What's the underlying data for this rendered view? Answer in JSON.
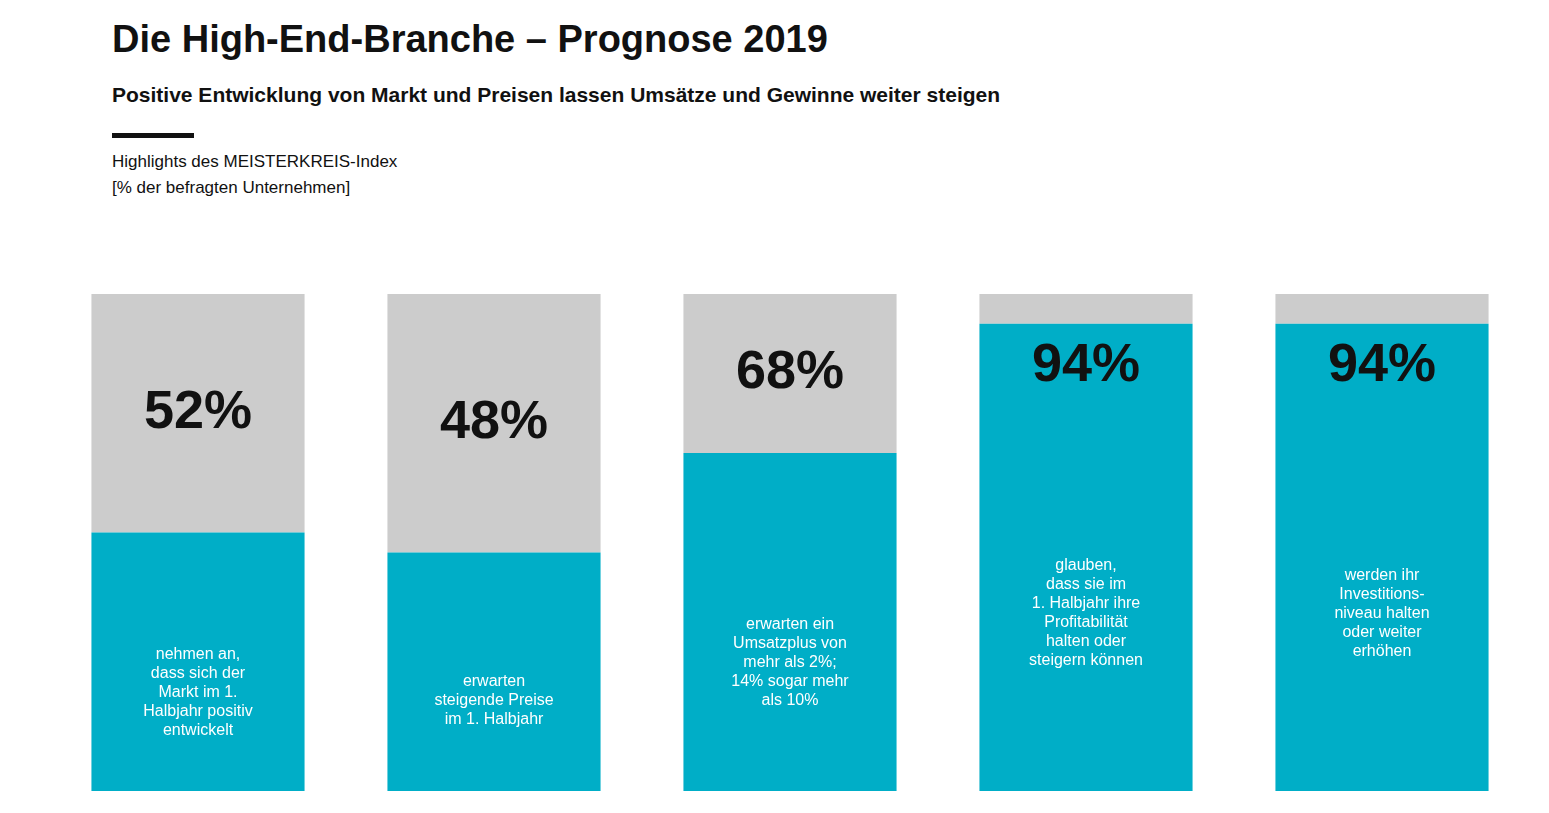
{
  "chart_data": {
    "type": "bar",
    "title": "Die High-End-Branche – Prognose 2019",
    "subtitle": "Positive Entwicklung von Markt und Preisen lassen Umsätze und Gewinne weiter steigen",
    "annotations": [
      "Highlights des MEISTERKREIS-Index",
      "[% der befragten Unternehmen]"
    ],
    "categories": [
      "nehmen an,\ndass sich der\nMarkt im 1.\nHalbjahr positiv\nentwickelt",
      "erwarten\nsteigende Preise\nim 1. Halbjahr",
      "erwarten ein\nUmsatzplus von\nmehr als 2%;\n14% sogar mehr\nals 10%",
      "glauben,\ndass sie im\n1. Halbjahr ihre\nProfitabilität\nhalten oder\nsteigern können",
      "werden ihr\nInvestitions-\nniveau halten\noder weiter\nerhöhen"
    ],
    "series": [
      {
        "color": "#00aec7",
        "values": [
          52,
          48,
          68,
          94,
          94
        ],
        "value_labels": [
          "52%",
          "48%",
          "68%",
          "94%",
          "94%"
        ]
      },
      {
        "color": "#cccccc",
        "values": [
          48,
          52,
          32,
          6,
          6
        ]
      }
    ],
    "stacked": true,
    "ylim": [
      0,
      100
    ],
    "data_labels": true,
    "tick_labels": false,
    "grid": false
  }
}
